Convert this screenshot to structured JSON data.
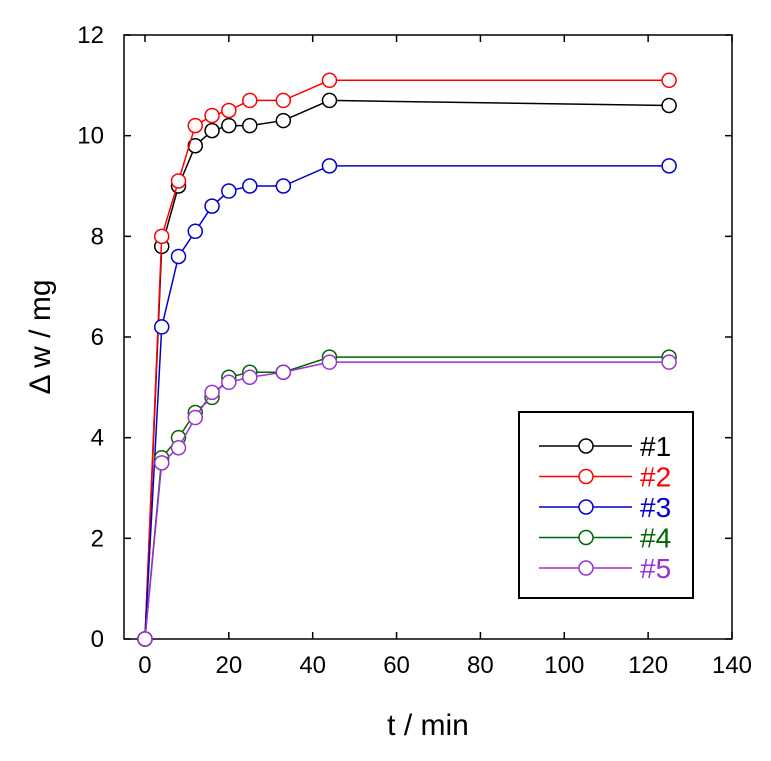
{
  "chart_data": {
    "type": "line",
    "xlabel": "t / min",
    "ylabel": "Δ w / mg",
    "xlim": [
      -5,
      140
    ],
    "ylim": [
      0,
      12
    ],
    "xticks": [
      0,
      20,
      40,
      60,
      80,
      100,
      120,
      140
    ],
    "yticks": [
      0,
      2,
      4,
      6,
      8,
      10,
      12
    ],
    "grid": false,
    "legend_position": "bottom-right",
    "marker": "open-circle",
    "series": [
      {
        "name": "#1",
        "color": "#000000",
        "x": [
          0,
          4,
          8,
          12,
          16,
          20,
          25,
          33,
          44,
          125
        ],
        "y": [
          0,
          7.8,
          9.0,
          9.8,
          10.1,
          10.2,
          10.2,
          10.3,
          10.7,
          10.6
        ]
      },
      {
        "name": "#2",
        "color": "#ff0000",
        "x": [
          0,
          4,
          8,
          12,
          16,
          20,
          25,
          33,
          44,
          125
        ],
        "y": [
          0,
          8.0,
          9.1,
          10.2,
          10.4,
          10.5,
          10.7,
          10.7,
          11.1,
          11.1
        ]
      },
      {
        "name": "#3",
        "color": "#0000cc",
        "x": [
          0,
          4,
          8,
          12,
          16,
          20,
          25,
          33,
          44,
          125
        ],
        "y": [
          0,
          6.2,
          7.6,
          8.1,
          8.6,
          8.9,
          9.0,
          9.0,
          9.4,
          9.4
        ]
      },
      {
        "name": "#4",
        "color": "#006600",
        "x": [
          0,
          4,
          8,
          12,
          16,
          20,
          25,
          33,
          44,
          125
        ],
        "y": [
          0,
          3.6,
          4.0,
          4.5,
          4.8,
          5.2,
          5.3,
          5.3,
          5.6,
          5.6
        ]
      },
      {
        "name": "#5",
        "color": "#9933cc",
        "x": [
          0,
          4,
          8,
          12,
          16,
          20,
          25,
          33,
          44,
          125
        ],
        "y": [
          0,
          3.5,
          3.8,
          4.4,
          4.9,
          5.1,
          5.2,
          5.3,
          5.5,
          5.5
        ]
      }
    ]
  }
}
